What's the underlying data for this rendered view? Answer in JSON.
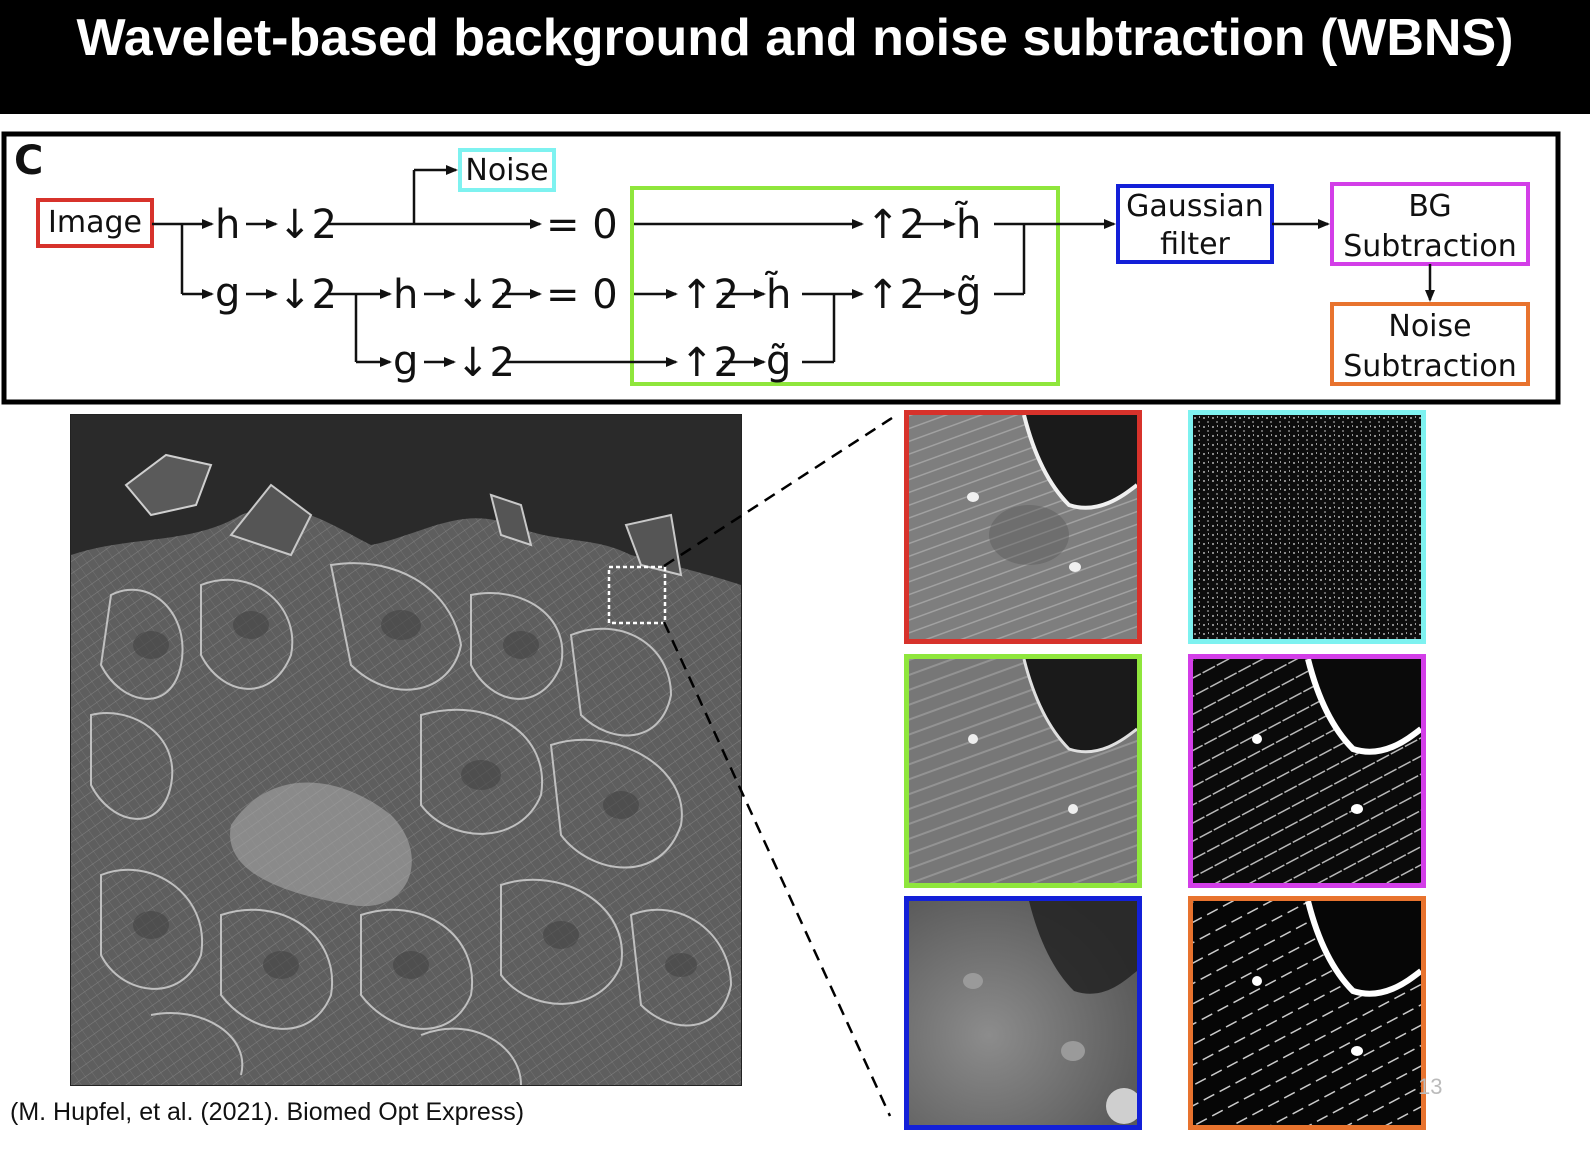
{
  "title": "Wavelet-based background and noise subtraction (WBNS)",
  "diagram": {
    "panel_label": "C",
    "image_box": "Image",
    "noise_box": "Noise",
    "gaussian_box": {
      "line1": "Gaussian",
      "line2": "filter"
    },
    "bg_box": {
      "line1": "BG",
      "line2": "Subtraction"
    },
    "noise_sub_box": {
      "line1": "Noise",
      "line2": "Subtraction"
    },
    "ops": {
      "h": "h",
      "g": "g",
      "down2": "↓2",
      "up2": "↑2",
      "eq0": "= 0",
      "h_tilde": "h̃",
      "g_tilde": "g̃"
    }
  },
  "colors": {
    "image": "#d7322b",
    "noise": "#7ef2f0",
    "reconstruction": "#8fe63c",
    "gaussian": "#1320d8",
    "bg_subtraction": "#d33ee8",
    "noise_subtraction": "#e8732e"
  },
  "citation": "(M. Hupfel, et al. (2021). Biomed Opt Express)",
  "page_number": "13"
}
